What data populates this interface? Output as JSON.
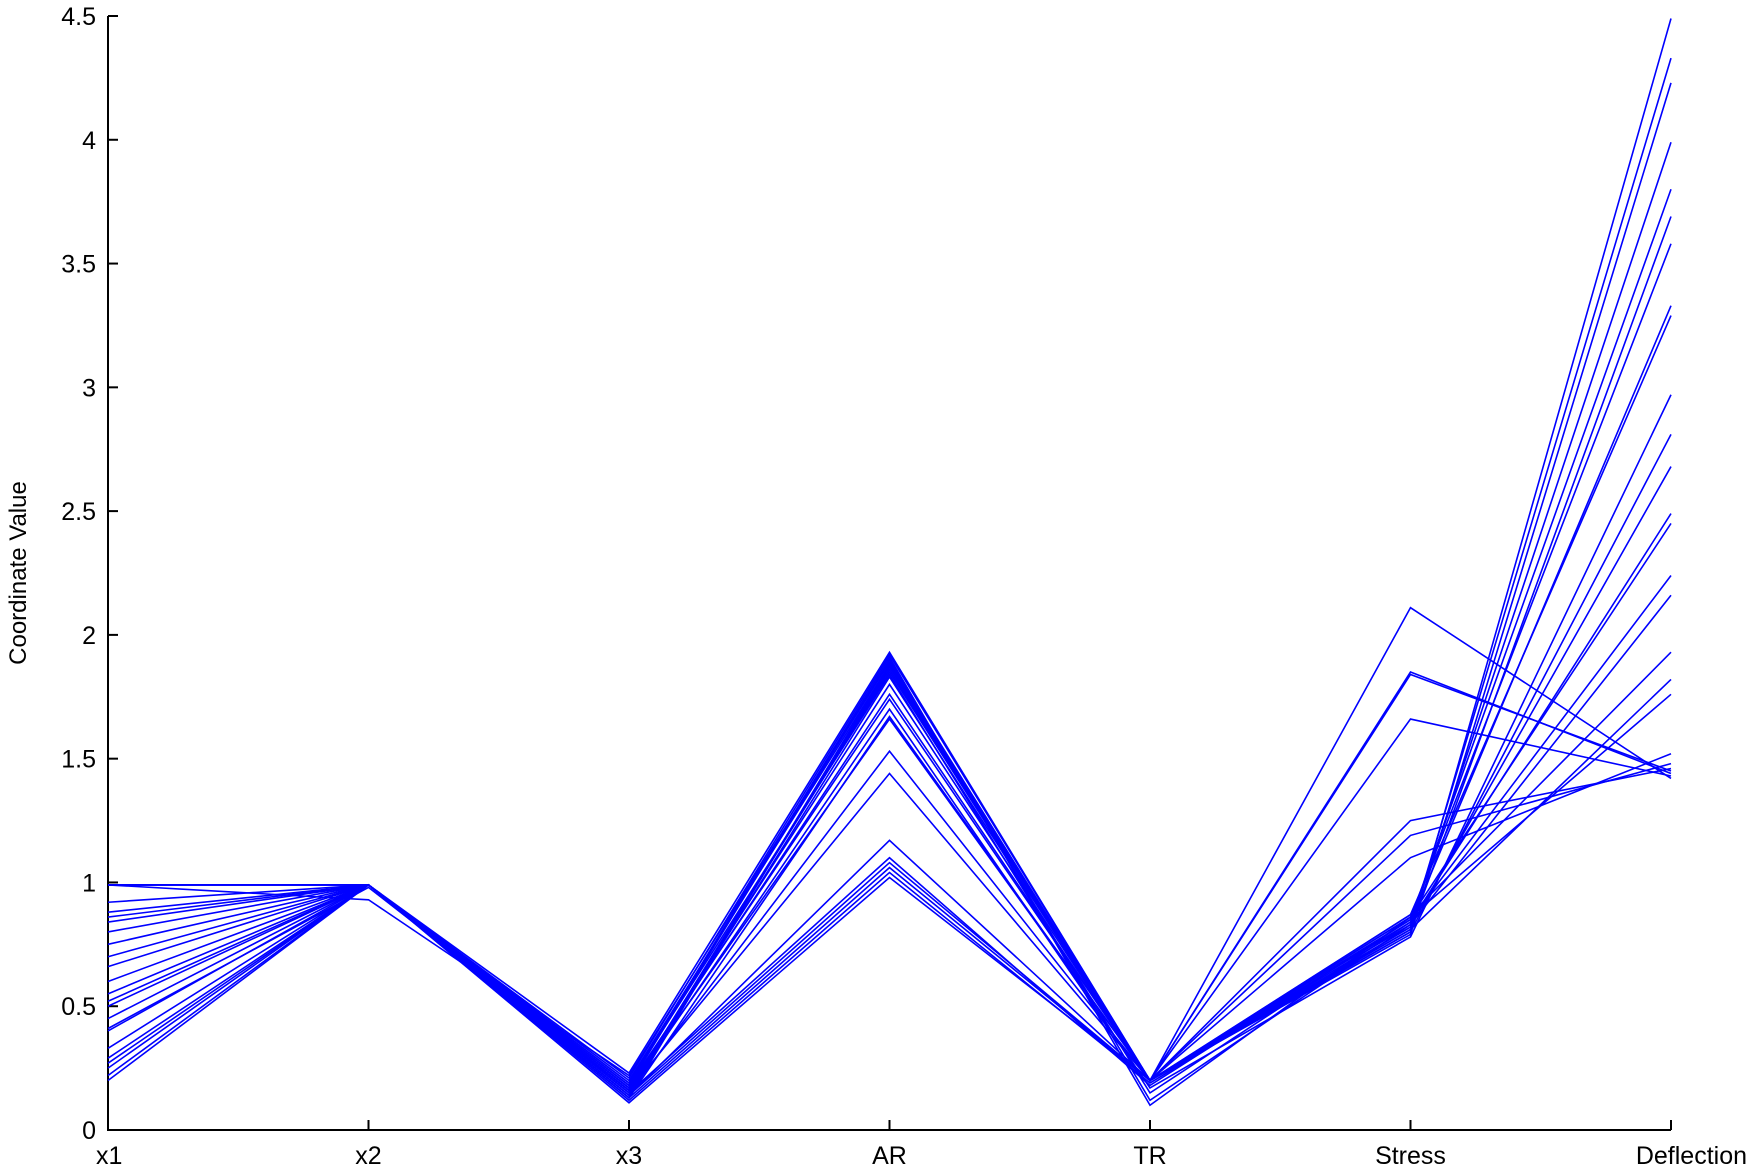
{
  "chart_data": {
    "type": "parallel",
    "ylabel": "Coordinate Value",
    "categories": [
      "x1",
      "x2",
      "x3",
      "AR",
      "TR",
      "Stress",
      "Deflection"
    ],
    "color": "#0000ff",
    "ylim": [
      0,
      4.5
    ],
    "yticks": [
      0,
      0.5,
      1,
      1.5,
      2,
      2.5,
      3,
      3.5,
      4,
      4.5
    ],
    "grid": false,
    "series": [
      {
        "values": [
          0.2,
          0.99,
          0.11,
          1.02,
          0.2,
          0.8,
          4.49
        ]
      },
      {
        "values": [
          0.22,
          0.99,
          0.12,
          1.04,
          0.19,
          0.82,
          4.33
        ]
      },
      {
        "values": [
          0.25,
          0.99,
          0.13,
          1.06,
          0.2,
          0.79,
          4.23
        ]
      },
      {
        "values": [
          0.27,
          0.99,
          0.14,
          1.08,
          0.2,
          0.83,
          3.99
        ]
      },
      {
        "values": [
          0.29,
          0.99,
          0.15,
          1.1,
          0.18,
          0.85,
          3.8
        ]
      },
      {
        "values": [
          0.33,
          0.99,
          0.14,
          1.17,
          0.2,
          0.81,
          3.69
        ]
      },
      {
        "values": [
          0.41,
          0.98,
          0.16,
          1.44,
          0.2,
          0.86,
          3.58
        ]
      },
      {
        "values": [
          0.45,
          0.99,
          0.15,
          1.53,
          0.2,
          0.84,
          3.33
        ]
      },
      {
        "values": [
          0.5,
          0.99,
          0.17,
          1.66,
          0.2,
          0.87,
          3.29
        ]
      },
      {
        "values": [
          0.55,
          0.99,
          0.16,
          1.7,
          0.17,
          0.78,
          2.97
        ]
      },
      {
        "values": [
          0.6,
          0.99,
          0.18,
          1.74,
          0.2,
          0.8,
          2.81
        ]
      },
      {
        "values": [
          0.66,
          0.99,
          0.17,
          1.8,
          0.2,
          0.82,
          2.68
        ]
      },
      {
        "values": [
          0.7,
          0.99,
          0.19,
          1.84,
          0.15,
          0.84,
          2.49
        ]
      },
      {
        "values": [
          0.75,
          0.99,
          0.16,
          1.86,
          0.2,
          0.86,
          2.45
        ]
      },
      {
        "values": [
          0.8,
          0.99,
          0.2,
          1.88,
          0.2,
          0.85,
          2.24
        ]
      },
      {
        "values": [
          0.84,
          0.99,
          0.18,
          1.9,
          0.12,
          0.83,
          2.16
        ]
      },
      {
        "values": [
          0.88,
          0.99,
          0.21,
          1.92,
          0.2,
          0.87,
          1.93
        ]
      },
      {
        "values": [
          0.92,
          0.99,
          0.23,
          1.93,
          0.2,
          0.81,
          1.82
        ]
      },
      {
        "values": [
          0.99,
          0.99,
          0.19,
          1.91,
          0.1,
          0.86,
          1.76
        ]
      },
      {
        "values": [
          0.99,
          0.93,
          0.22,
          1.89,
          0.2,
          2.11,
          1.42
        ]
      },
      {
        "values": [
          0.99,
          0.99,
          0.14,
          1.87,
          0.2,
          1.85,
          1.44
        ]
      },
      {
        "values": [
          0.99,
          0.99,
          0.16,
          1.85,
          0.2,
          1.84,
          1.45
        ]
      },
      {
        "values": [
          0.99,
          0.99,
          0.13,
          1.88,
          0.2,
          1.66,
          1.43
        ]
      },
      {
        "values": [
          0.86,
          0.99,
          0.15,
          1.83,
          0.2,
          1.25,
          1.46
        ]
      },
      {
        "values": [
          0.52,
          0.99,
          0.17,
          1.76,
          0.2,
          1.19,
          1.48
        ]
      },
      {
        "values": [
          0.4,
          0.99,
          0.13,
          1.67,
          0.2,
          1.1,
          1.52
        ]
      }
    ]
  }
}
